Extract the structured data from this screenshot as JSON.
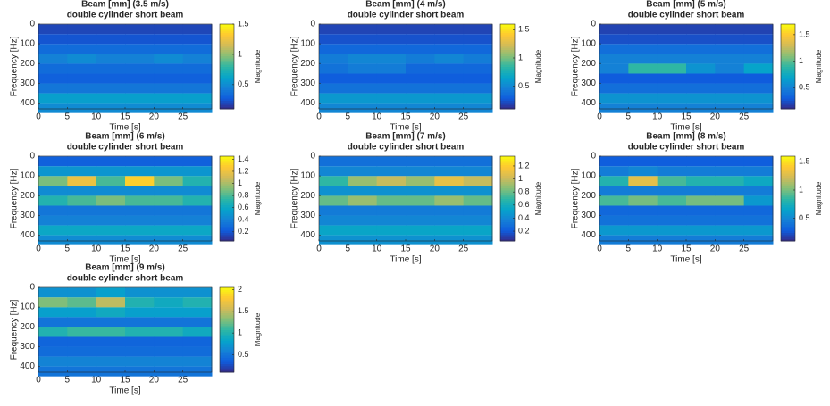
{
  "chart_data": [
    {
      "type": "heatmap",
      "title": "Beam [mm] (3.5 m/s)",
      "subtitle": "double cylinder short beam",
      "x_label": "Time [s]",
      "y_label": "Frequency [Hz]",
      "colorbar_label": "Magnitude",
      "x": [
        2.5,
        7.5,
        12.5,
        17.5,
        22.5,
        27.5
      ],
      "y": [
        25,
        75,
        125,
        175,
        225,
        275,
        325,
        375,
        425
      ],
      "z": [
        [
          0.2,
          0.2,
          0.2,
          0.2,
          0.2,
          0.2
        ],
        [
          0.25,
          0.25,
          0.25,
          0.25,
          0.25,
          0.25
        ],
        [
          0.35,
          0.35,
          0.35,
          0.35,
          0.35,
          0.35
        ],
        [
          0.45,
          0.5,
          0.45,
          0.45,
          0.5,
          0.45
        ],
        [
          0.35,
          0.35,
          0.35,
          0.35,
          0.35,
          0.35
        ],
        [
          0.3,
          0.3,
          0.3,
          0.3,
          0.3,
          0.3
        ],
        [
          0.4,
          0.4,
          0.4,
          0.4,
          0.4,
          0.4
        ],
        [
          0.6,
          0.6,
          0.6,
          0.6,
          0.6,
          0.6
        ],
        [
          0.5,
          0.5,
          0.5,
          0.5,
          0.5,
          0.5
        ]
      ],
      "xlim": [
        0,
        30
      ],
      "xticks": [
        0,
        5,
        10,
        15,
        20,
        25
      ],
      "ylim": [
        0,
        430
      ],
      "yticks": [
        0,
        100,
        200,
        300,
        400
      ],
      "clim": [
        0.1,
        1.5
      ],
      "cticks": [
        0.5,
        1,
        1.5
      ]
    },
    {
      "type": "heatmap",
      "title": "Beam [mm] (4 m/s)",
      "subtitle": "double cylinder short beam",
      "x_label": "Time [s]",
      "y_label": "Frequency [Hz]",
      "colorbar_label": "Magnitude",
      "x": [
        2.5,
        7.5,
        12.5,
        17.5,
        22.5,
        27.5
      ],
      "y": [
        25,
        75,
        125,
        175,
        225,
        275,
        325,
        375,
        425
      ],
      "z": [
        [
          0.2,
          0.2,
          0.2,
          0.2,
          0.2,
          0.2
        ],
        [
          0.25,
          0.25,
          0.25,
          0.25,
          0.25,
          0.25
        ],
        [
          0.35,
          0.35,
          0.35,
          0.35,
          0.35,
          0.35
        ],
        [
          0.45,
          0.5,
          0.5,
          0.45,
          0.5,
          0.45
        ],
        [
          0.4,
          0.45,
          0.45,
          0.35,
          0.35,
          0.35
        ],
        [
          0.3,
          0.3,
          0.3,
          0.3,
          0.3,
          0.3
        ],
        [
          0.4,
          0.4,
          0.4,
          0.4,
          0.4,
          0.4
        ],
        [
          0.6,
          0.6,
          0.6,
          0.6,
          0.6,
          0.6
        ],
        [
          0.5,
          0.5,
          0.5,
          0.5,
          0.5,
          0.5
        ]
      ],
      "xlim": [
        0,
        30
      ],
      "xticks": [
        0,
        5,
        10,
        15,
        20,
        25
      ],
      "ylim": [
        0,
        430
      ],
      "yticks": [
        0,
        100,
        200,
        300,
        400
      ],
      "clim": [
        0.1,
        1.6
      ],
      "cticks": [
        0.5,
        1,
        1.5
      ]
    },
    {
      "type": "heatmap",
      "title": "Beam [mm] (5 m/s)",
      "subtitle": "double cylinder short beam",
      "x_label": "Time [s]",
      "y_label": "Frequency [Hz]",
      "colorbar_label": "Magnitude",
      "x": [
        2.5,
        7.5,
        12.5,
        17.5,
        22.5,
        27.5
      ],
      "y": [
        25,
        75,
        125,
        175,
        225,
        275,
        325,
        375,
        425
      ],
      "z": [
        [
          0.2,
          0.2,
          0.2,
          0.2,
          0.2,
          0.2
        ],
        [
          0.25,
          0.25,
          0.25,
          0.25,
          0.25,
          0.25
        ],
        [
          0.4,
          0.4,
          0.4,
          0.4,
          0.4,
          0.4
        ],
        [
          0.5,
          0.5,
          0.5,
          0.5,
          0.5,
          0.5
        ],
        [
          0.5,
          0.9,
          0.9,
          0.6,
          0.5,
          0.7
        ],
        [
          0.3,
          0.3,
          0.3,
          0.3,
          0.3,
          0.3
        ],
        [
          0.4,
          0.4,
          0.4,
          0.4,
          0.4,
          0.4
        ],
        [
          0.6,
          0.6,
          0.6,
          0.6,
          0.6,
          0.6
        ],
        [
          0.5,
          0.5,
          0.5,
          0.5,
          0.5,
          0.5
        ]
      ],
      "xlim": [
        0,
        30
      ],
      "xticks": [
        0,
        5,
        10,
        15,
        20,
        25
      ],
      "ylim": [
        0,
        430
      ],
      "yticks": [
        0,
        100,
        200,
        300,
        400
      ],
      "clim": [
        0.1,
        1.7
      ],
      "cticks": [
        0.5,
        1,
        1.5
      ]
    },
    {
      "type": "heatmap",
      "title": "Beam [mm] (6 m/s)",
      "subtitle": "double cylinder short beam",
      "x_label": "Time [s]",
      "y_label": "Frequency [Hz]",
      "colorbar_label": "Magnitude",
      "x": [
        2.5,
        7.5,
        12.5,
        17.5,
        22.5,
        27.5
      ],
      "y": [
        25,
        75,
        125,
        175,
        225,
        275,
        325,
        375,
        425
      ],
      "z": [
        [
          0.25,
          0.25,
          0.25,
          0.25,
          0.25,
          0.25
        ],
        [
          0.5,
          0.5,
          0.5,
          0.5,
          0.5,
          0.5
        ],
        [
          0.9,
          1.2,
          0.8,
          1.3,
          0.9,
          0.7
        ],
        [
          0.45,
          0.45,
          0.45,
          0.45,
          0.45,
          0.45
        ],
        [
          0.7,
          0.8,
          0.9,
          0.8,
          0.8,
          0.7
        ],
        [
          0.35,
          0.35,
          0.35,
          0.35,
          0.35,
          0.35
        ],
        [
          0.4,
          0.4,
          0.4,
          0.4,
          0.4,
          0.4
        ],
        [
          0.6,
          0.6,
          0.6,
          0.6,
          0.6,
          0.6
        ],
        [
          0.45,
          0.45,
          0.45,
          0.45,
          0.45,
          0.45
        ]
      ],
      "xlim": [
        0,
        30
      ],
      "xticks": [
        0,
        5,
        10,
        15,
        20,
        25
      ],
      "ylim": [
        0,
        430
      ],
      "yticks": [
        0,
        100,
        200,
        300,
        400
      ],
      "clim": [
        0.05,
        1.45
      ],
      "cticks": [
        0.2,
        0.4,
        0.6,
        0.8,
        1,
        1.2,
        1.4
      ]
    },
    {
      "type": "heatmap",
      "title": "Beam [mm] (7 m/s)",
      "subtitle": "double cylinder short beam",
      "x_label": "Time [s]",
      "y_label": "Frequency [Hz]",
      "colorbar_label": "Magnitude",
      "x": [
        2.5,
        7.5,
        12.5,
        17.5,
        22.5,
        27.5
      ],
      "y": [
        25,
        75,
        125,
        175,
        225,
        275,
        325,
        375,
        425
      ],
      "z": [
        [
          0.3,
          0.3,
          0.3,
          0.3,
          0.3,
          0.3
        ],
        [
          0.4,
          0.4,
          0.4,
          0.4,
          0.4,
          0.4
        ],
        [
          0.7,
          0.9,
          1,
          0.9,
          1.1,
          1
        ],
        [
          0.45,
          0.45,
          0.45,
          0.45,
          0.45,
          0.45
        ],
        [
          0.8,
          0.9,
          0.8,
          0.8,
          0.9,
          0.8
        ],
        [
          0.35,
          0.35,
          0.35,
          0.35,
          0.35,
          0.35
        ],
        [
          0.4,
          0.4,
          0.4,
          0.4,
          0.4,
          0.4
        ],
        [
          0.55,
          0.55,
          0.55,
          0.55,
          0.55,
          0.55
        ],
        [
          0.45,
          0.45,
          0.45,
          0.45,
          0.45,
          0.45
        ]
      ],
      "xlim": [
        0,
        30
      ],
      "xticks": [
        0,
        5,
        10,
        15,
        20,
        25
      ],
      "ylim": [
        0,
        430
      ],
      "yticks": [
        0,
        100,
        200,
        300,
        400
      ],
      "clim": [
        0.05,
        1.35
      ],
      "cticks": [
        0.2,
        0.4,
        0.6,
        0.8,
        1,
        1.2
      ]
    },
    {
      "type": "heatmap",
      "title": "Beam [mm] (8 m/s)",
      "subtitle": "double cylinder short beam",
      "x_label": "Time [s]",
      "y_label": "Frequency [Hz]",
      "colorbar_label": "Magnitude",
      "x": [
        2.5,
        7.5,
        12.5,
        17.5,
        22.5,
        27.5
      ],
      "y": [
        25,
        75,
        125,
        175,
        225,
        275,
        325,
        375,
        425
      ],
      "z": [
        [
          0.3,
          0.3,
          0.3,
          0.3,
          0.3,
          0.3
        ],
        [
          0.45,
          0.5,
          0.45,
          0.45,
          0.45,
          0.45
        ],
        [
          0.8,
          1.3,
          0.9,
          0.8,
          0.8,
          0.7
        ],
        [
          0.45,
          0.45,
          0.45,
          0.45,
          0.45,
          0.45
        ],
        [
          0.9,
          1,
          0.9,
          1,
          1,
          0.6
        ],
        [
          0.35,
          0.35,
          0.35,
          0.35,
          0.35,
          0.35
        ],
        [
          0.4,
          0.4,
          0.4,
          0.4,
          0.4,
          0.4
        ],
        [
          0.6,
          0.6,
          0.6,
          0.6,
          0.6,
          0.6
        ],
        [
          0.45,
          0.45,
          0.45,
          0.45,
          0.45,
          0.45
        ]
      ],
      "xlim": [
        0,
        30
      ],
      "xticks": [
        0,
        5,
        10,
        15,
        20,
        25
      ],
      "ylim": [
        0,
        430
      ],
      "yticks": [
        0,
        100,
        200,
        300,
        400
      ],
      "clim": [
        0.1,
        1.6
      ],
      "cticks": [
        0.5,
        1,
        1.5
      ]
    },
    {
      "type": "heatmap",
      "title": "Beam [mm] (9 m/s)",
      "subtitle": "double cylinder short beam",
      "x_label": "Time [s]",
      "y_label": "Frequency [Hz]",
      "colorbar_label": "Magnitude",
      "x": [
        2.5,
        7.5,
        12.5,
        17.5,
        22.5,
        27.5
      ],
      "y": [
        25,
        75,
        125,
        175,
        225,
        275,
        325,
        375,
        425
      ],
      "z": [
        [
          0.7,
          0.7,
          0.8,
          0.7,
          0.7,
          0.7
        ],
        [
          1.3,
          1.2,
          1.5,
          1,
          0.9,
          1
        ],
        [
          0.8,
          0.8,
          0.9,
          0.8,
          0.8,
          0.8
        ],
        [
          0.5,
          0.5,
          0.5,
          0.5,
          0.5,
          0.5
        ],
        [
          1,
          1.1,
          1.1,
          1,
          1,
          0.9
        ],
        [
          0.4,
          0.4,
          0.4,
          0.4,
          0.4,
          0.4
        ],
        [
          0.45,
          0.45,
          0.45,
          0.45,
          0.45,
          0.45
        ],
        [
          0.6,
          0.6,
          0.6,
          0.6,
          0.6,
          0.6
        ],
        [
          0.5,
          0.5,
          0.5,
          0.5,
          0.5,
          0.5
        ]
      ],
      "xlim": [
        0,
        30
      ],
      "xticks": [
        0,
        5,
        10,
        15,
        20,
        25
      ],
      "ylim": [
        0,
        430
      ],
      "yticks": [
        0,
        100,
        200,
        300,
        400
      ],
      "clim": [
        0.1,
        2.05
      ],
      "cticks": [
        0.5,
        1,
        1.5,
        2
      ]
    }
  ]
}
